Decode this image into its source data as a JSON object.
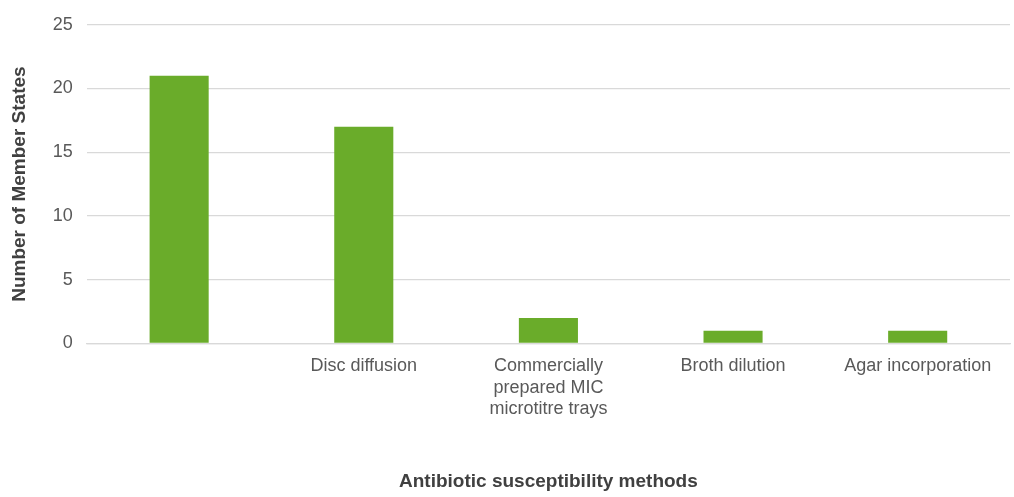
{
  "chart_data": {
    "type": "bar",
    "xlabel": "Antibiotic susceptibility methods",
    "ylabel": "Number of Member States",
    "categories": [
      null,
      "Disc diffusion",
      "Commercially prepared MIC microtitre trays",
      "Broth dilution",
      "Agar incorporation"
    ],
    "values": [
      21,
      17,
      2,
      1,
      1
    ],
    "color": "#6aac2a",
    "ylim": [
      0,
      25
    ],
    "yticks": [
      0,
      5,
      10,
      15,
      20,
      25
    ],
    "grid": "y"
  }
}
